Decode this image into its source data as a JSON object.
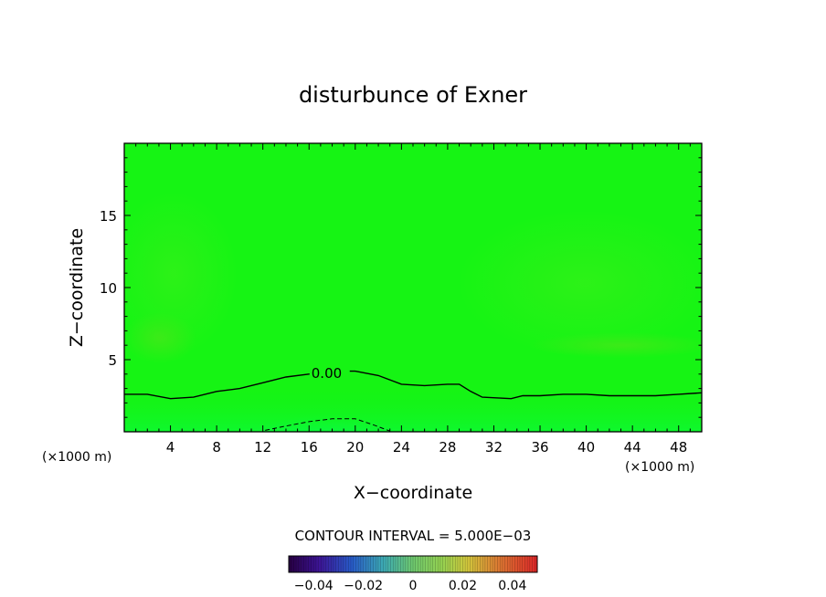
{
  "chart_data": {
    "type": "contour",
    "title": "disturbunce of Exner",
    "xlabel": "X−coordinate",
    "ylabel": "Z−coordinate",
    "x_unit_left": "(×1000 m)",
    "x_unit_right": "(×1000 m)",
    "xlim": [
      0,
      50
    ],
    "ylim": [
      0,
      20
    ],
    "xticks": [
      4,
      8,
      12,
      16,
      20,
      24,
      28,
      32,
      36,
      40,
      44,
      48
    ],
    "xtick_labels": [
      "4",
      "8",
      "12",
      "16",
      "20",
      "24",
      "28",
      "32",
      "36",
      "40",
      "44",
      "48"
    ],
    "yticks": [
      5,
      10,
      15
    ],
    "ytick_labels": [
      "5",
      "10",
      "15"
    ],
    "contour_interval_text": "CONTOUR INTERVAL = 5.000E−03",
    "contours": [
      {
        "level": 0.0,
        "label": "0.00",
        "label_at": [
          16.2,
          4.1
        ],
        "style": "solid",
        "points": [
          [
            0,
            2.6
          ],
          [
            2,
            2.6
          ],
          [
            4,
            2.3
          ],
          [
            6,
            2.4
          ],
          [
            8,
            2.8
          ],
          [
            10,
            3.0
          ],
          [
            12,
            3.4
          ],
          [
            14,
            3.8
          ],
          [
            16,
            4.0
          ],
          [
            18,
            4.2
          ],
          [
            20,
            4.2
          ],
          [
            22,
            3.9
          ],
          [
            24,
            3.3
          ],
          [
            26,
            3.2
          ],
          [
            28,
            3.3
          ],
          [
            29,
            3.3
          ],
          [
            30,
            2.8
          ],
          [
            31,
            2.4
          ],
          [
            33.5,
            2.3
          ],
          [
            34.5,
            2.5
          ],
          [
            36,
            2.5
          ],
          [
            38,
            2.6
          ],
          [
            40,
            2.6
          ],
          [
            42,
            2.5
          ],
          [
            44,
            2.5
          ],
          [
            46,
            2.5
          ],
          [
            48,
            2.6
          ],
          [
            50,
            2.7
          ]
        ]
      },
      {
        "level": -0.005,
        "label": "",
        "style": "dashed",
        "points": [
          [
            12.2,
            0.1
          ],
          [
            14,
            0.4
          ],
          [
            16,
            0.7
          ],
          [
            18,
            0.9
          ],
          [
            20,
            0.9
          ],
          [
            21.5,
            0.5
          ],
          [
            23,
            0.05
          ]
        ]
      }
    ],
    "colorbar": {
      "ticks": [
        -0.04,
        -0.02,
        0,
        0.02,
        0.04
      ],
      "tick_labels": [
        "−0.04",
        "−0.02",
        "0",
        "0.02",
        "0.04"
      ],
      "range": [
        -0.05,
        0.05
      ]
    }
  }
}
